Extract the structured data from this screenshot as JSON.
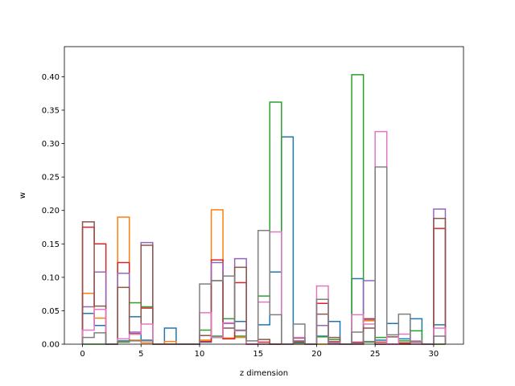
{
  "chart_data": {
    "type": "histogram-step",
    "title": "",
    "xlabel": "z dimension",
    "ylabel": "w",
    "xlim": [
      -1.55,
      32.55
    ],
    "ylim": [
      0,
      0.445
    ],
    "xticks": [
      0,
      5,
      10,
      15,
      20,
      25,
      30
    ],
    "yticks": [
      0.0,
      0.05,
      0.1,
      0.15,
      0.2,
      0.25,
      0.3,
      0.35,
      0.4
    ],
    "ytick_labels": [
      "0.00",
      "0.05",
      "0.10",
      "0.15",
      "0.20",
      "0.25",
      "0.30",
      "0.35",
      "0.40"
    ],
    "grid": false,
    "bin_edges": [
      0,
      1,
      2,
      3,
      4,
      5,
      6,
      7,
      8,
      9,
      10,
      11,
      12,
      13,
      14,
      15,
      16,
      17,
      18,
      19,
      20,
      21,
      22,
      23,
      24,
      25,
      26,
      27,
      28,
      29,
      30,
      31
    ],
    "series": [
      {
        "color": "#1f77b4",
        "values": [
          0.046,
          0.028,
          0,
          0.005,
          0.041,
          0.006,
          0,
          0.024,
          0,
          0,
          0.003,
          0.01,
          0.009,
          0.034,
          0,
          0.029,
          0.108,
          0.31,
          0.002,
          0,
          0.012,
          0.034,
          0,
          0.098,
          0.036,
          0.006,
          0.031,
          0.008,
          0.038,
          0,
          0.029
        ]
      },
      {
        "color": "#ff7f0e",
        "values": [
          0.076,
          0.039,
          0,
          0.19,
          0.006,
          0.002,
          0,
          0.004,
          0,
          0,
          0.006,
          0.201,
          0.009,
          0.01,
          0,
          0,
          0,
          0,
          0,
          0,
          0,
          0,
          0,
          0,
          0.035,
          0,
          0,
          0,
          0,
          0,
          0
        ]
      },
      {
        "color": "#2ca02c",
        "values": [
          0,
          0,
          0,
          0.003,
          0.062,
          0.056,
          0,
          0,
          0,
          0,
          0.021,
          0.012,
          0.038,
          0.012,
          0,
          0.072,
          0.362,
          0,
          0.003,
          0,
          0.011,
          0.007,
          0,
          0.403,
          0.003,
          0.01,
          0,
          0.005,
          0.02,
          0,
          0
        ]
      },
      {
        "color": "#d62728",
        "values": [
          0.175,
          0.15,
          0,
          0.122,
          0.015,
          0.054,
          0,
          0,
          0,
          0,
          0.004,
          0.126,
          0.008,
          0.092,
          0,
          0.003,
          0,
          0,
          0.004,
          0,
          0.061,
          0.004,
          0,
          0.003,
          0.038,
          0.003,
          0,
          0.002,
          0.004,
          0,
          0.173
        ]
      },
      {
        "color": "#9467bd",
        "values": [
          0.056,
          0.108,
          0,
          0.106,
          0.018,
          0.152,
          0,
          0,
          0,
          0,
          0.013,
          0.122,
          0.031,
          0.128,
          0,
          0,
          0,
          0,
          0.005,
          0,
          0.028,
          0,
          0,
          0.002,
          0.095,
          0,
          0,
          0,
          0,
          0,
          0.202
        ]
      },
      {
        "color": "#8c564b",
        "values": [
          0.183,
          0.057,
          0,
          0.085,
          0.016,
          0.148,
          0,
          0,
          0,
          0,
          0.013,
          0.095,
          0.024,
          0.115,
          0,
          0.007,
          0,
          0,
          0.009,
          0,
          0.045,
          0.01,
          0,
          0,
          0.024,
          0,
          0.011,
          0,
          0.003,
          0,
          0.188
        ]
      },
      {
        "color": "#e377c2",
        "values": [
          0.021,
          0.052,
          0,
          0.008,
          0.015,
          0.03,
          0,
          0,
          0,
          0,
          0.047,
          0.01,
          0.032,
          0.02,
          0,
          0.063,
          0.168,
          0,
          0.01,
          0,
          0.087,
          0.003,
          0,
          0.044,
          0.03,
          0.318,
          0,
          0.015,
          0.005,
          0,
          0.024
        ]
      },
      {
        "color": "#7f7f7f",
        "values": [
          0.01,
          0.017,
          0,
          0.004,
          0.005,
          0.005,
          0,
          0,
          0,
          0,
          0.09,
          0.095,
          0.102,
          0.021,
          0.005,
          0.17,
          0.044,
          0,
          0.03,
          0,
          0.067,
          0.002,
          0,
          0.018,
          0.004,
          0.265,
          0.014,
          0.045,
          0.003,
          0,
          0.012
        ]
      }
    ]
  }
}
